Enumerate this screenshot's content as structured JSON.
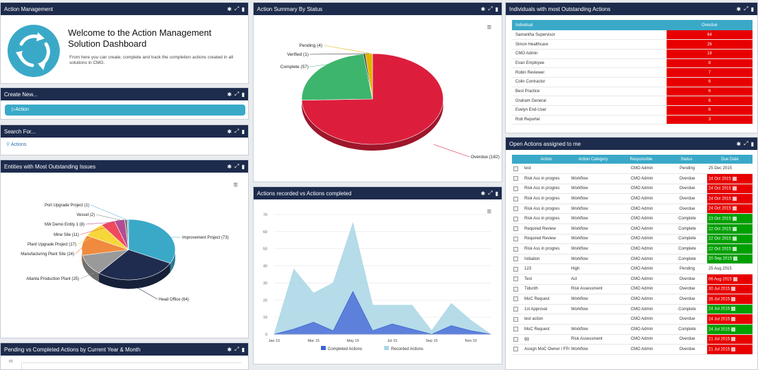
{
  "panels": {
    "action_management": "Action Management",
    "action_summary": "Action Summary By Status",
    "individuals": "Individuals with most Outstanding Actions",
    "create_new": "Create New...",
    "search_for": "Search For...",
    "entities": "Entities with Most Outstanding Issues",
    "recorded_vs_completed": "Actions recorded vs Actions completed",
    "open_actions": "Open Actions assigned to me",
    "pending_vs_completed": "Pending vs Completed Actions by Current Year & Month"
  },
  "welcome": {
    "title": "Welcome to the Action Management Solution Dashboard",
    "text": "From here you can create, complete and track the completion actions created in all solutions in CMO."
  },
  "create_new": {
    "button": "Action"
  },
  "search_for": {
    "link": "Actions"
  },
  "summary_chart": {
    "type": "pie",
    "slices": [
      {
        "label": "Overdue",
        "value": 182,
        "color": "#dc1e3c"
      },
      {
        "label": "Complete",
        "value": 57,
        "color": "#3db56d"
      },
      {
        "label": "Verified",
        "value": 1,
        "color": "#2c2c2c"
      },
      {
        "label": "Pending",
        "value": 4,
        "color": "#e0b400"
      }
    ]
  },
  "individuals": {
    "headers": [
      "Individual",
      "Overdue"
    ],
    "rows": [
      [
        "Samantha Supervisor",
        "64"
      ],
      [
        "Simon Healthcare",
        "26"
      ],
      [
        "CMO Admin",
        "18"
      ],
      [
        "Evan Employee",
        "8"
      ],
      [
        "Robin Reviewer",
        "7"
      ],
      [
        "Colin Contractor",
        "6"
      ],
      [
        "Best Practice",
        "6"
      ],
      [
        "Graham General",
        "6"
      ],
      [
        "Evelyn End-User",
        "6"
      ],
      [
        "Rob Reporter",
        "3"
      ]
    ]
  },
  "entities_chart": {
    "type": "pie",
    "slices": [
      {
        "label": "Improvement Project",
        "value": 73,
        "color": "#3aa9c8"
      },
      {
        "label": "Head Office",
        "value": 64,
        "color": "#1f2c4f"
      },
      {
        "label": "Atlanta Production Plant",
        "value": 25,
        "color": "#9a9a9a"
      },
      {
        "label": "Manufacturing Plant Site",
        "value": 24,
        "color": "#f08a3e"
      },
      {
        "label": "Plant Upgrade Project",
        "value": 17,
        "color": "#f7d63a"
      },
      {
        "label": "Mine Site",
        "value": 11,
        "color": "#ef4a5c"
      },
      {
        "label": "NW Demo Entity 1",
        "value": 8,
        "color": "#b24d95"
      },
      {
        "label": "Vessel",
        "value": 2,
        "color": "#7a7a7a"
      },
      {
        "label": "Port Upgrade Project",
        "value": 1,
        "color": "#5ab3d6"
      }
    ]
  },
  "chart_data": {
    "type": "area",
    "x": [
      "Jan 15",
      "Feb 15",
      "Mar 15",
      "Apr 15",
      "May 15",
      "Jun 15",
      "Jul 15",
      "Aug 15",
      "Sep 15",
      "Oct 15",
      "Nov 15",
      "Dec 15"
    ],
    "xticks": [
      "Jan 15",
      "Mar 15",
      "May 15",
      "Jul 15",
      "Sep 15",
      "Nov 15"
    ],
    "ylim": [
      0,
      70
    ],
    "yticks": [
      0,
      10,
      20,
      30,
      40,
      50,
      60,
      70
    ],
    "series": [
      {
        "name": "Completed Actions",
        "color": "#3f63d6",
        "values": [
          0,
          3,
          7,
          2,
          25,
          2,
          6,
          3,
          0,
          5,
          2,
          0
        ]
      },
      {
        "name": "Recorded Actions",
        "color": "#a9d6e5",
        "values": [
          0,
          38,
          24,
          30,
          65,
          17,
          17,
          17,
          2,
          18,
          8,
          0
        ]
      }
    ]
  },
  "open_actions": {
    "headers": [
      "",
      "Action",
      "Action Category",
      "Responsible",
      "Status",
      "Due Date"
    ],
    "rows": [
      [
        "test",
        "",
        "CMO Admin",
        "Pending",
        "25 Dec 2015",
        "none"
      ],
      [
        "Risk Ass in progres",
        "Workflow",
        "CMO Admin",
        "Overdue",
        "24 Oct 2015",
        "red"
      ],
      [
        "Risk Ass in progres",
        "Workflow",
        "CMO Admin",
        "Overdue",
        "24 Oct 2015",
        "red"
      ],
      [
        "Risk Ass in progres",
        "Workflow",
        "CMO Admin",
        "Overdue",
        "24 Oct 2015",
        "red"
      ],
      [
        "Risk Ass in progres",
        "Workflow",
        "CMO Admin",
        "Overdue",
        "24 Oct 2015",
        "red"
      ],
      [
        "Risk Ass in progres",
        "Workflow",
        "CMO Admin",
        "Complete",
        "23 Oct 2015",
        "green"
      ],
      [
        "Required Review",
        "Workflow",
        "CMO Admin",
        "Complete",
        "22 Oct 2015",
        "green"
      ],
      [
        "Required Review",
        "Workflow",
        "CMO Admin",
        "Complete",
        "22 Oct 2015",
        "green"
      ],
      [
        "Risk Ass in progres",
        "Workflow",
        "CMO Admin",
        "Complete",
        "22 Oct 2015",
        "green"
      ],
      [
        "Initiation",
        "Workflow",
        "CMO Admin",
        "Complete",
        "20 Sep 2015",
        "green"
      ],
      [
        "123",
        "High",
        "CMO Admin",
        "Pending",
        "25 Aug 2015",
        "none"
      ],
      [
        "Test",
        "Act",
        "CMO Admin",
        "Overdue",
        "06 Aug 2015",
        "red"
      ],
      [
        "Tidunth",
        "Risk Assessment",
        "CMO Admin",
        "Overdue",
        "30 Jul 2015",
        "red"
      ],
      [
        "MoC Request",
        "Workflow",
        "CMO Admin",
        "Overdue",
        "26 Jul 2015",
        "red"
      ],
      [
        "1st Approval",
        "Workflow",
        "CMO Admin",
        "Complete",
        "24 Jul 2015",
        "green"
      ],
      [
        "test action",
        "",
        "CMO Admin",
        "Overdue",
        "24 Jul 2015",
        "red"
      ],
      [
        "MoC Request",
        "Workflow",
        "CMO Admin",
        "Complete",
        "24 Jul 2015",
        "green"
      ],
      [
        "gg",
        "Risk Assessment",
        "CMO Admin",
        "Overdue",
        "21 Jul 2015",
        "red"
      ],
      [
        "Assign MoC Owner / FPs",
        "Workflow",
        "CMO Admin",
        "Overdue",
        "21 Jul 2015",
        "red"
      ]
    ]
  },
  "pending_chart": {
    "ytick_top": "60"
  },
  "colors": {
    "header_bg": "#1d2b4c",
    "accent": "#3aa9c8",
    "overdue": "#e80000",
    "complete": "#00a000"
  },
  "icons": [
    "gear-icon",
    "expand-icon",
    "delete-icon",
    "refresh-icon",
    "search-icon",
    "add-icon",
    "menu-icon",
    "calendar-icon"
  ]
}
